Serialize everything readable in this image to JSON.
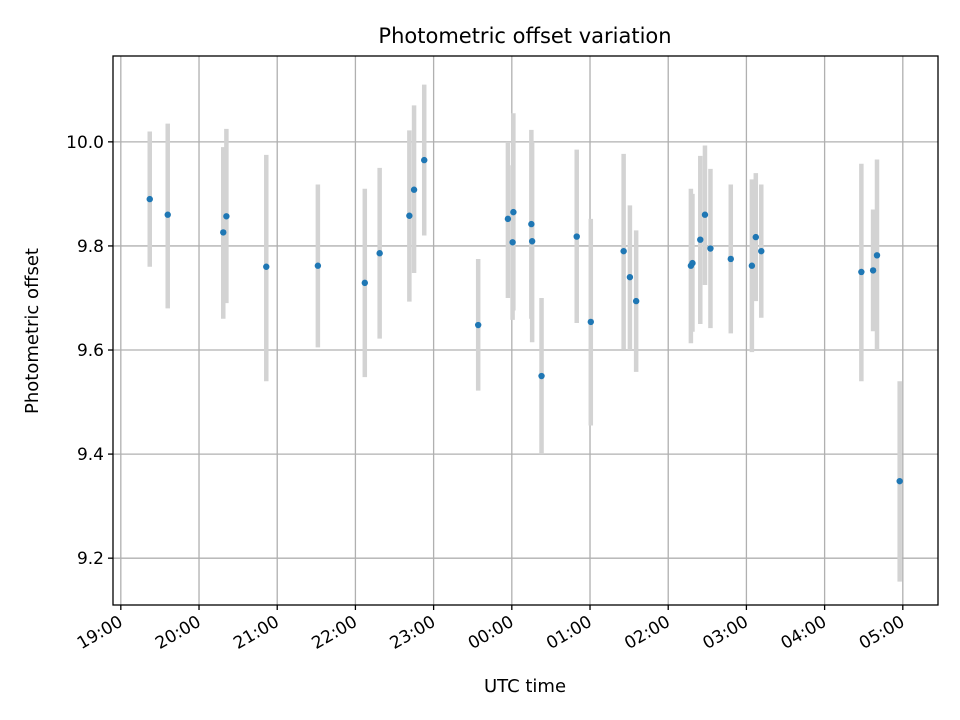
{
  "chart_data": {
    "type": "scatter",
    "title": "Photometric offset variation",
    "xlabel": "UTC time",
    "ylabel": "Photometric offset",
    "x_unit": "hours since 19:00 UTC",
    "xlim": [
      -0.1,
      10.45
    ],
    "ylim": [
      9.11,
      10.165
    ],
    "x_ticks": [
      "19:00",
      "20:00",
      "21:00",
      "22:00",
      "23:00",
      "00:00",
      "01:00",
      "02:00",
      "03:00",
      "04:00",
      "05:00"
    ],
    "y_ticks": [
      9.2,
      9.4,
      9.6,
      9.8,
      10.0
    ],
    "y_tick_labels": [
      "9.2",
      "9.4",
      "9.6",
      "9.8",
      "10.0"
    ],
    "grid": true,
    "marker_color": "#1f77b4",
    "errorbar_color": "#d3d3d3",
    "points": [
      {
        "x": 0.37,
        "y": 9.89,
        "err_low": 9.76,
        "err_high": 10.02
      },
      {
        "x": 0.6,
        "y": 9.86,
        "err_low": 9.68,
        "err_high": 10.035
      },
      {
        "x": 1.31,
        "y": 9.826,
        "err_low": 9.66,
        "err_high": 9.99
      },
      {
        "x": 1.35,
        "y": 9.857,
        "err_low": 9.69,
        "err_high": 10.025
      },
      {
        "x": 1.86,
        "y": 9.76,
        "err_low": 9.54,
        "err_high": 9.975
      },
      {
        "x": 2.52,
        "y": 9.762,
        "err_low": 9.605,
        "err_high": 9.918
      },
      {
        "x": 3.12,
        "y": 9.729,
        "err_low": 9.548,
        "err_high": 9.91
      },
      {
        "x": 3.31,
        "y": 9.786,
        "err_low": 9.622,
        "err_high": 9.95
      },
      {
        "x": 3.69,
        "y": 9.858,
        "err_low": 9.693,
        "err_high": 10.022
      },
      {
        "x": 3.75,
        "y": 9.908,
        "err_low": 9.748,
        "err_high": 10.07
      },
      {
        "x": 3.88,
        "y": 9.965,
        "err_low": 9.82,
        "err_high": 10.11
      },
      {
        "x": 4.57,
        "y": 9.648,
        "err_low": 9.522,
        "err_high": 9.775
      },
      {
        "x": 4.95,
        "y": 9.852,
        "err_low": 9.7,
        "err_high": 10.0
      },
      {
        "x": 5.01,
        "y": 9.807,
        "err_low": 9.658,
        "err_high": 9.955
      },
      {
        "x": 5.02,
        "y": 9.865,
        "err_low": 9.676,
        "err_high": 10.055
      },
      {
        "x": 5.25,
        "y": 9.842,
        "err_low": 9.66,
        "err_high": 10.023
      },
      {
        "x": 5.26,
        "y": 9.809,
        "err_low": 9.615,
        "err_high": 10.0
      },
      {
        "x": 5.38,
        "y": 9.55,
        "err_low": 9.4,
        "err_high": 9.7
      },
      {
        "x": 5.83,
        "y": 9.818,
        "err_low": 9.652,
        "err_high": 9.985
      },
      {
        "x": 6.01,
        "y": 9.654,
        "err_low": 9.455,
        "err_high": 9.852
      },
      {
        "x": 6.43,
        "y": 9.79,
        "err_low": 9.602,
        "err_high": 9.977
      },
      {
        "x": 6.51,
        "y": 9.74,
        "err_low": 9.6,
        "err_high": 9.878
      },
      {
        "x": 6.59,
        "y": 9.694,
        "err_low": 9.558,
        "err_high": 9.83
      },
      {
        "x": 7.29,
        "y": 9.762,
        "err_low": 9.613,
        "err_high": 9.91
      },
      {
        "x": 7.31,
        "y": 9.767,
        "err_low": 9.635,
        "err_high": 9.9
      },
      {
        "x": 7.41,
        "y": 9.812,
        "err_low": 9.65,
        "err_high": 9.973
      },
      {
        "x": 7.47,
        "y": 9.86,
        "err_low": 9.725,
        "err_high": 9.993
      },
      {
        "x": 7.54,
        "y": 9.795,
        "err_low": 9.642,
        "err_high": 9.948
      },
      {
        "x": 7.8,
        "y": 9.775,
        "err_low": 9.632,
        "err_high": 9.918
      },
      {
        "x": 8.07,
        "y": 9.762,
        "err_low": 9.596,
        "err_high": 9.928
      },
      {
        "x": 8.12,
        "y": 9.817,
        "err_low": 9.694,
        "err_high": 9.94
      },
      {
        "x": 8.19,
        "y": 9.79,
        "err_low": 9.662,
        "err_high": 9.918
      },
      {
        "x": 9.47,
        "y": 9.75,
        "err_low": 9.54,
        "err_high": 9.958
      },
      {
        "x": 9.62,
        "y": 9.753,
        "err_low": 9.636,
        "err_high": 9.87
      },
      {
        "x": 9.67,
        "y": 9.782,
        "err_low": 9.6,
        "err_high": 9.966
      },
      {
        "x": 9.96,
        "y": 9.348,
        "err_low": 9.155,
        "err_high": 9.54
      }
    ]
  }
}
